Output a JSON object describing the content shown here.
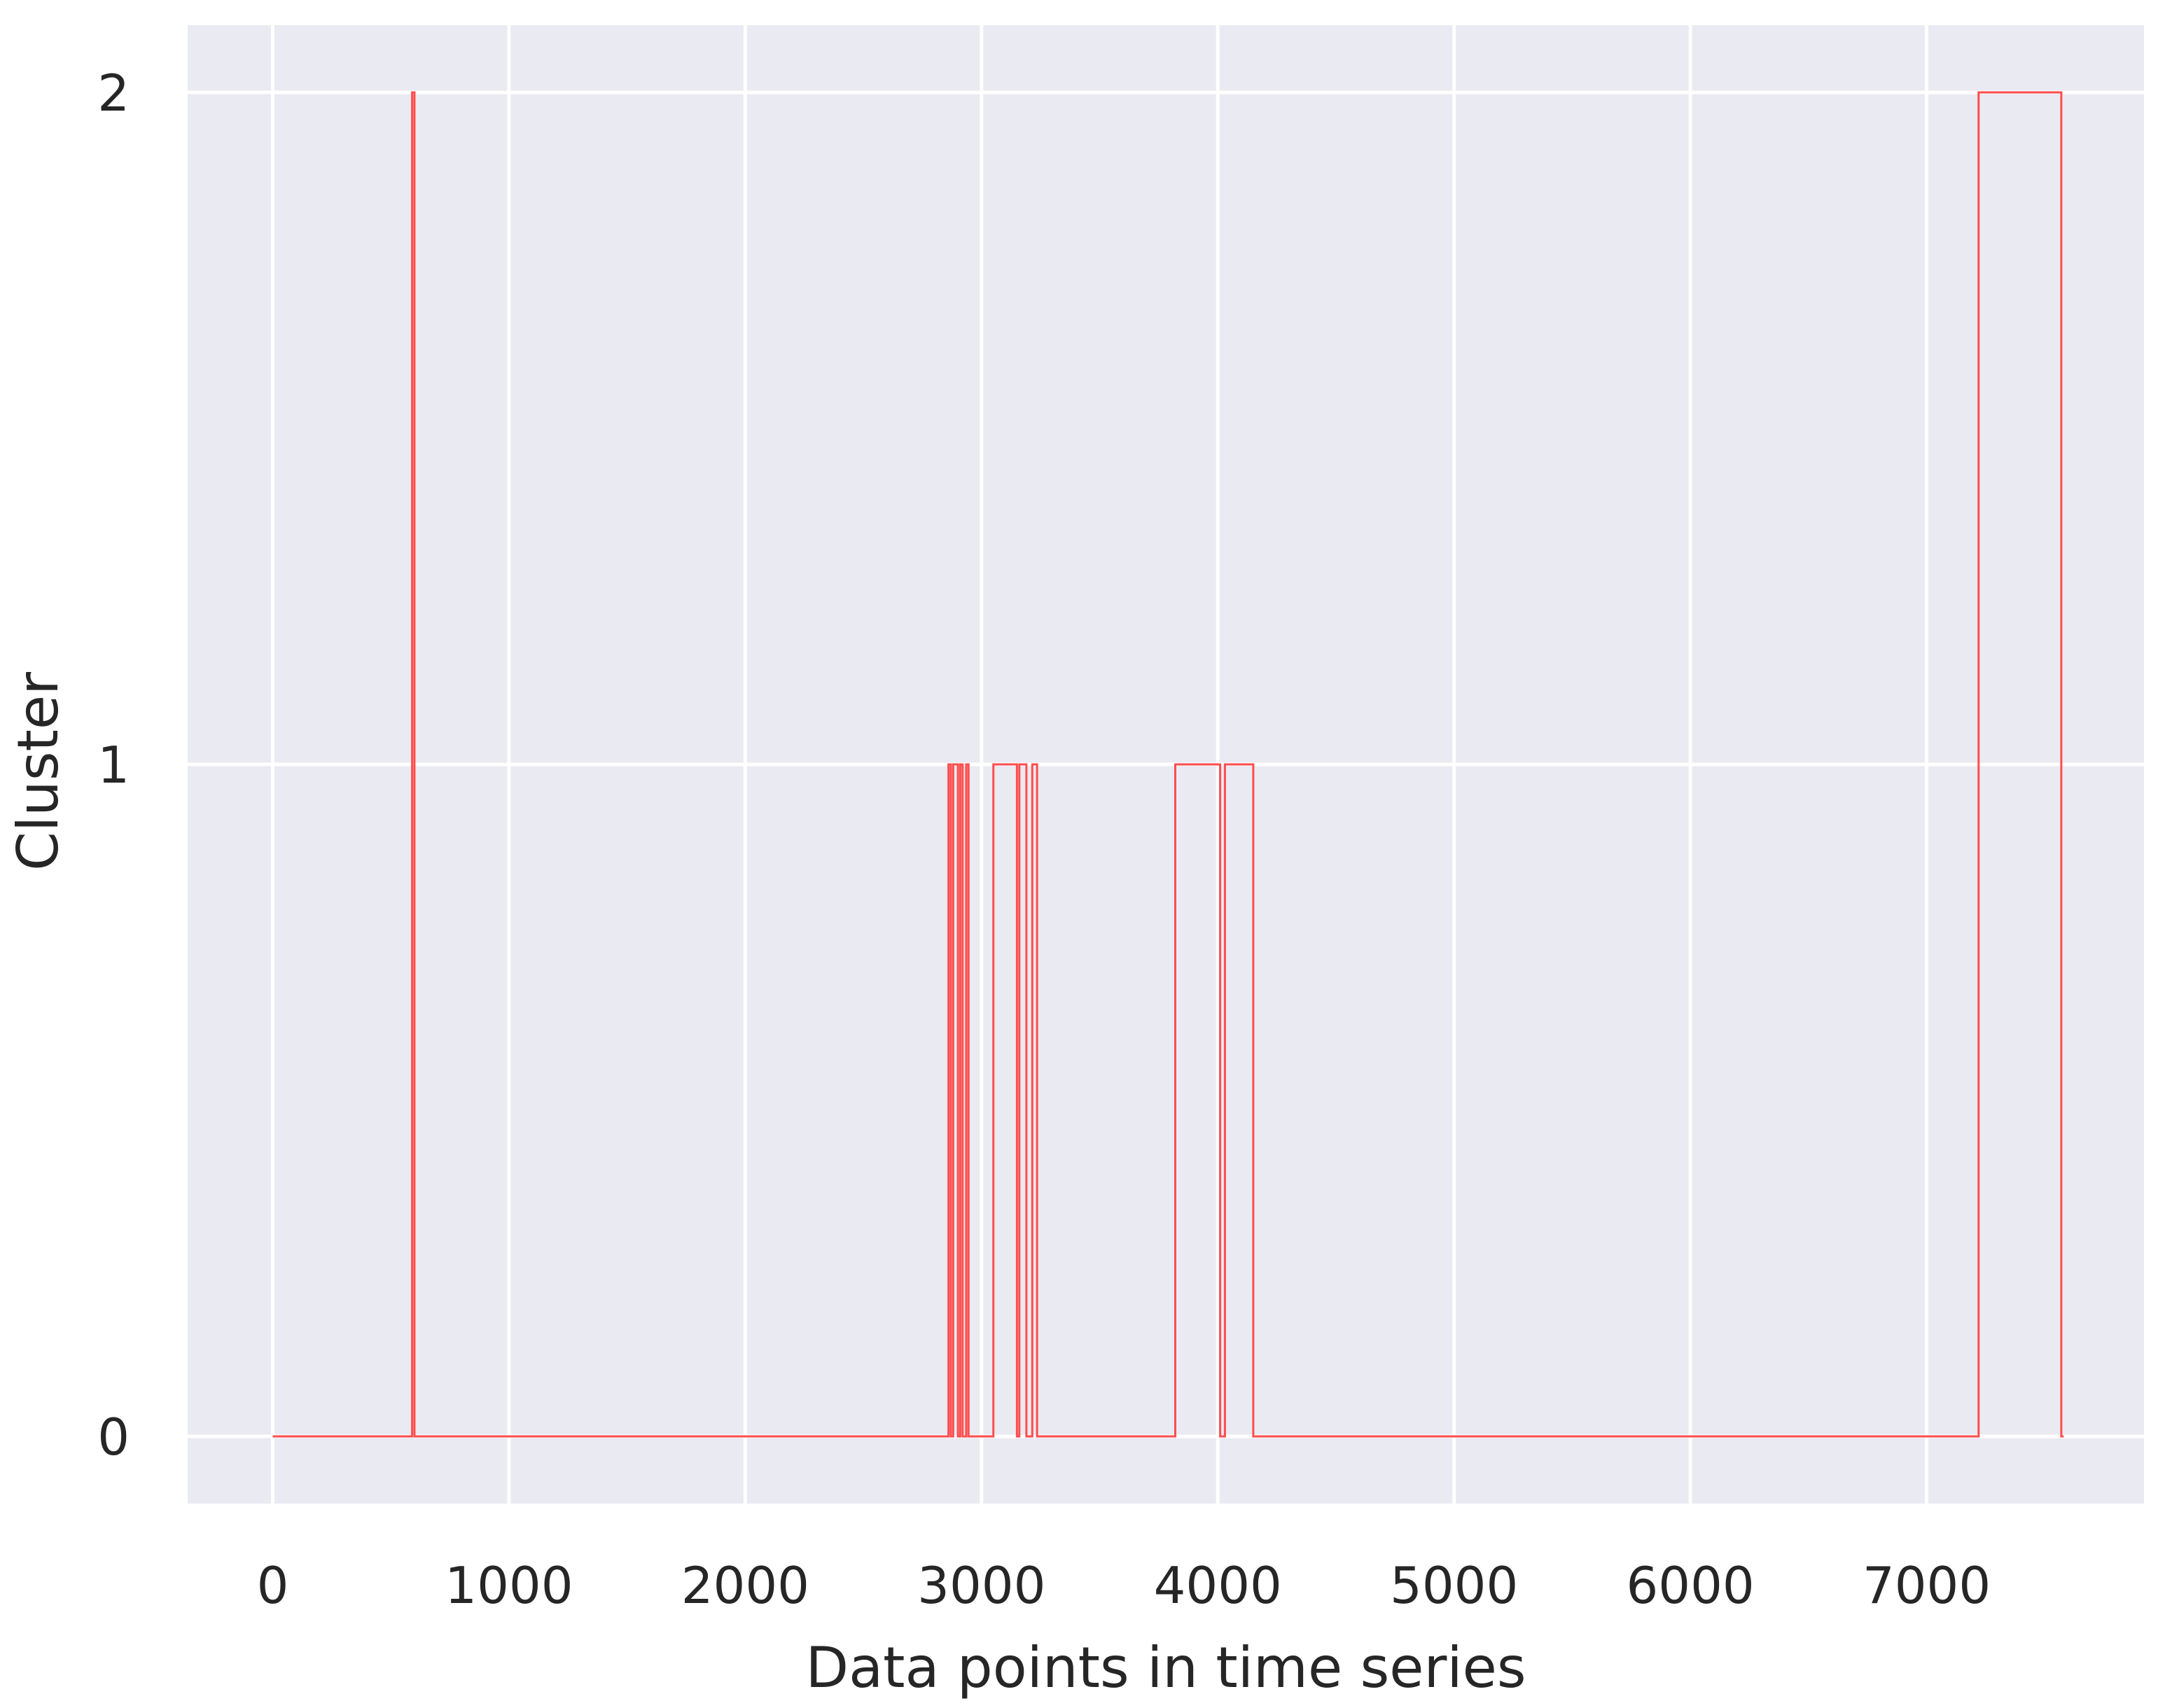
{
  "chart_data": {
    "type": "line",
    "step": true,
    "title": "",
    "xlabel": "Data points in time series",
    "ylabel": "Cluster",
    "xlim": [
      -360,
      7920
    ],
    "ylim": [
      -0.1,
      2.1
    ],
    "xticks": [
      0,
      1000,
      2000,
      3000,
      4000,
      5000,
      6000,
      7000
    ],
    "xtick_labels": [
      "0",
      "1000",
      "2000",
      "3000",
      "4000",
      "5000",
      "6000",
      "7000"
    ],
    "yticks": [
      0,
      1,
      2
    ],
    "ytick_labels": [
      "0",
      "1",
      "2"
    ],
    "grid": true,
    "legend": "none",
    "colors": {
      "background": "#eaeaf2",
      "grid": "#ffffff",
      "line": "#ff4d4d",
      "text": "#262626"
    },
    "series": [
      {
        "color": "#ff4d4d",
        "x": [
          0,
          590,
          590,
          600,
          600,
          2860,
          2860,
          2870,
          2870,
          2880,
          2880,
          2900,
          2900,
          2910,
          2910,
          2920,
          2920,
          2935,
          2935,
          2945,
          2945,
          3050,
          3050,
          3150,
          3150,
          3160,
          3160,
          3190,
          3190,
          3215,
          3215,
          3235,
          3235,
          3820,
          3820,
          4010,
          4010,
          4030,
          4030,
          4150,
          4150,
          7220,
          7220,
          7570,
          7570,
          7580
        ],
        "y": [
          0,
          0,
          2,
          2,
          0,
          0,
          1,
          1,
          0,
          0,
          1,
          1,
          0,
          0,
          1,
          1,
          0,
          0,
          1,
          1,
          0,
          0,
          1,
          1,
          0,
          0,
          1,
          1,
          0,
          0,
          1,
          1,
          0,
          0,
          1,
          1,
          0,
          0,
          1,
          1,
          0,
          0,
          2,
          2,
          0,
          0
        ]
      }
    ]
  }
}
